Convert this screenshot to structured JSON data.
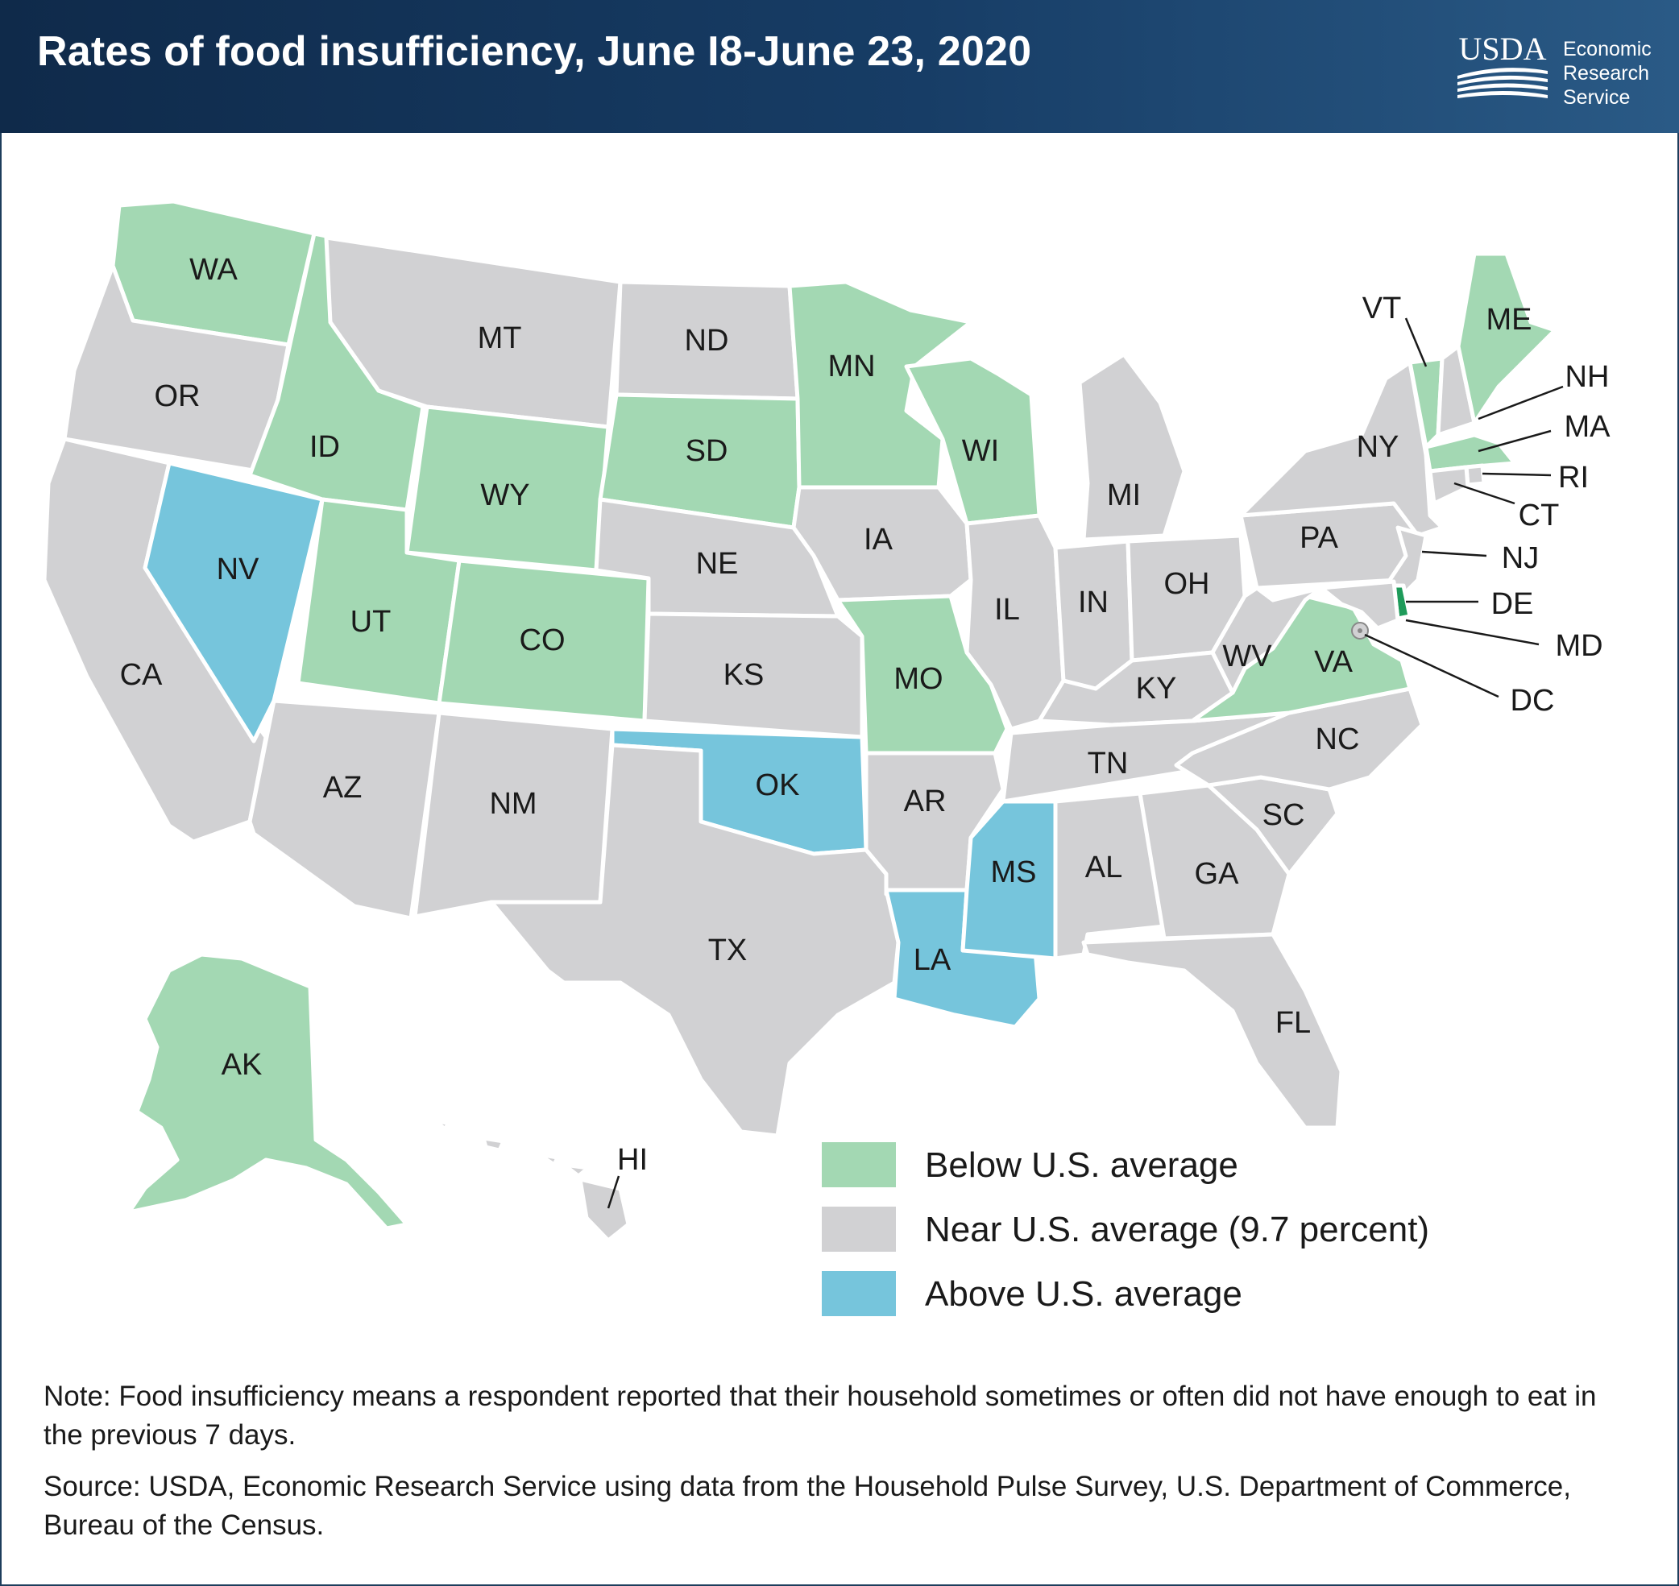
{
  "title": "Rates of food insufficiency, June I8-June 23, 2020",
  "logo": {
    "mark": "USDA",
    "lines": [
      "Economic",
      "Research",
      "Service"
    ]
  },
  "colors": {
    "below": "#a3d8b3",
    "near": "#d1d1d3",
    "above": "#76c5dc",
    "highlight_de": "#1e9b5a"
  },
  "legend": {
    "below": "Below U.S. average",
    "near": "Near U.S. average (9.7 percent)",
    "above": "Above U.S. average"
  },
  "states": {
    "WA": "below",
    "OR": "near",
    "CA": "near",
    "ID": "below",
    "NV": "above",
    "MT": "near",
    "WY": "below",
    "UT": "below",
    "AZ": "near",
    "CO": "below",
    "NM": "near",
    "ND": "near",
    "SD": "below",
    "NE": "near",
    "KS": "near",
    "OK": "above",
    "TX": "near",
    "MN": "below",
    "IA": "near",
    "MO": "below",
    "AR": "near",
    "LA": "above",
    "WI": "below",
    "IL": "near",
    "MS": "above",
    "MI": "near",
    "IN": "near",
    "OH": "near",
    "KY": "near",
    "TN": "near",
    "AL": "near",
    "GA": "near",
    "FL": "near",
    "SC": "near",
    "NC": "near",
    "VA": "below",
    "WV": "near",
    "PA": "near",
    "NY": "near",
    "VT": "below",
    "NH": "near",
    "ME": "below",
    "MA": "below",
    "RI": "near",
    "CT": "near",
    "NJ": "near",
    "DE": "below",
    "MD": "near",
    "DC": "near",
    "AK": "below",
    "HI": "near"
  },
  "notes": {
    "note": "Note: Food insufficiency means a respondent reported that their household sometimes or often did not have enough to eat in the previous 7 days.",
    "source": "Source: USDA, Economic Research Service using data from the Household Pulse Survey, U.S. Department of Commerce, Bureau of the Census."
  }
}
